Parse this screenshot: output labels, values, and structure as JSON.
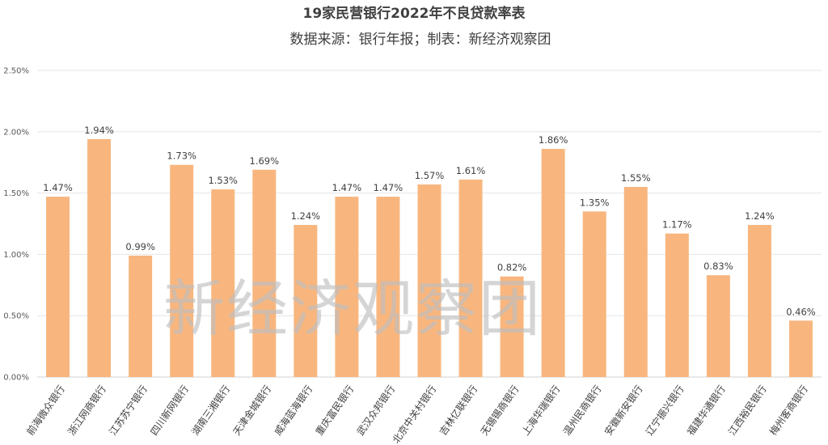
{
  "chart_data": {
    "type": "bar",
    "title": "19家民营银行2022年不良贷款率表",
    "subtitle": "数据来源：银行年报；制表：新经济观察团",
    "watermark": "新经济观察团",
    "categories": [
      "前海微众银行",
      "浙江网商银行",
      "江苏苏宁银行",
      "四川新网银行",
      "湖南三湘银行",
      "天津金城银行",
      "威海蓝海银行",
      "重庆富民银行",
      "武汉众邦银行",
      "北京中关村银行",
      "吉林亿联银行",
      "无锡锡商银行",
      "上海华瑞银行",
      "温州民商银行",
      "安徽新安银行",
      "辽宁振兴银行",
      "福建华通银行",
      "江西裕民银行",
      "梅州客商银行"
    ],
    "values": [
      1.47,
      1.94,
      0.99,
      1.73,
      1.53,
      1.69,
      1.24,
      1.47,
      1.47,
      1.57,
      1.61,
      0.82,
      1.86,
      1.35,
      1.55,
      1.17,
      0.83,
      1.24,
      0.46
    ],
    "data_labels": [
      "1.47%",
      "1.94%",
      "0.99%",
      "1.73%",
      "1.53%",
      "1.69%",
      "1.24%",
      "1.47%",
      "1.47%",
      "1.57%",
      "1.61%",
      "0.82%",
      "1.86%",
      "1.35%",
      "1.55%",
      "1.17%",
      "0.83%",
      "1.24%",
      "0.46%"
    ],
    "ylim": [
      0,
      2.5
    ],
    "yticks": [
      0,
      0.5,
      1.0,
      1.5,
      2.0,
      2.5
    ],
    "ytick_labels": [
      "0.00%",
      "0.50%",
      "1.00%",
      "1.50%",
      "2.00%",
      "2.50%"
    ],
    "bar_color": "#F8B67E",
    "grid": true,
    "legend": "none"
  }
}
